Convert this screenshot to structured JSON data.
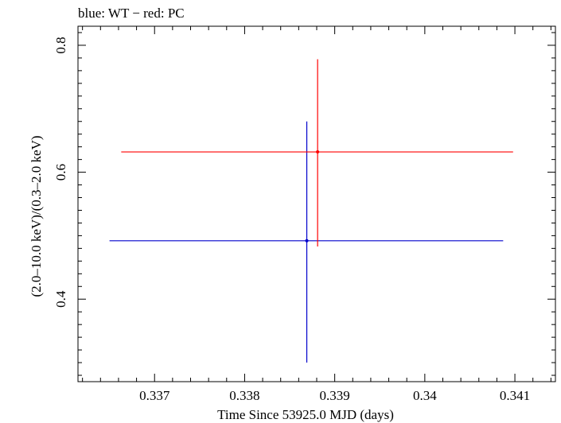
{
  "chart_data": {
    "type": "scatter",
    "title": "blue: WT − red: PC",
    "xlabel": "Time Since 53925.0 MJD (days)",
    "ylabel": "(2.0–10.0 keV)/(0.3–2.0 keV)",
    "xlim": [
      0.33615,
      0.34145
    ],
    "ylim": [
      0.27,
      0.83
    ],
    "x_ticks": [
      {
        "value": 0.337,
        "label": "0.337"
      },
      {
        "value": 0.338,
        "label": "0.338"
      },
      {
        "value": 0.339,
        "label": "0.339"
      },
      {
        "value": 0.34,
        "label": "0.34"
      },
      {
        "value": 0.341,
        "label": "0.341"
      }
    ],
    "y_ticks": [
      {
        "value": 0.4,
        "label": "0.4"
      },
      {
        "value": 0.6,
        "label": "0.6"
      },
      {
        "value": 0.8,
        "label": "0.8"
      }
    ],
    "grid": false,
    "series": [
      {
        "key": "wt",
        "color": "#0000cc",
        "points": [
          {
            "x": 0.33869,
            "y": 0.492,
            "x_lo": 0.3365,
            "x_hi": 0.34087,
            "y_lo": 0.3,
            "y_hi": 0.68
          }
        ]
      },
      {
        "key": "pc",
        "color": "#ff0000",
        "points": [
          {
            "x": 0.33881,
            "y": 0.632,
            "x_lo": 0.33663,
            "x_hi": 0.34098,
            "y_lo": 0.483,
            "y_hi": 0.778
          }
        ]
      }
    ]
  }
}
